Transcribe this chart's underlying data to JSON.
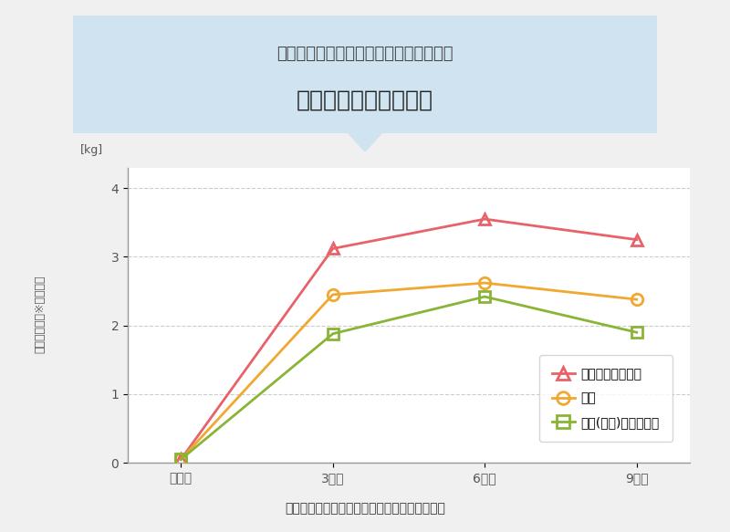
{
  "title_line1": "運動とミルクプロテインの組み合わせで",
  "title_line2": "筋肉量が効果的に増加",
  "subtitle": "運動とミルクプロテインの相乗効果：長期介入",
  "ylabel_unit": "[kg]",
  "ylabel_text": "除脂肪体重（※）の変化",
  "x_labels": [
    "介入前",
    "3ヶ月",
    "6ヶ月",
    "9ヶ月"
  ],
  "x_values": [
    0,
    1,
    2,
    3
  ],
  "series": [
    {
      "label": "ミルクプロテイン",
      "values": [
        0.05,
        3.12,
        3.55,
        3.25
      ],
      "color": "#e8626a",
      "marker": "^"
    },
    {
      "label": "糖質",
      "values": [
        0.05,
        2.45,
        2.62,
        2.38
      ],
      "color": "#f0a830",
      "marker": "o"
    },
    {
      "label": "ソイ(大豆)プロテイン",
      "values": [
        0.05,
        1.88,
        2.42,
        1.9
      ],
      "color": "#8ab435",
      "marker": "s"
    }
  ],
  "ylim": [
    0,
    4.3
  ],
  "yticks": [
    0,
    1,
    2,
    3,
    4
  ],
  "grid_color": "#cccccc",
  "bg_color": "#f0f0f0",
  "plot_bg_color": "#ffffff",
  "title_box_color": "#cfe3f0",
  "title_line1_fontsize": 13,
  "title_line2_fontsize": 18,
  "legend_fontsize": 10,
  "axis_label_fontsize": 9,
  "tick_fontsize": 10
}
